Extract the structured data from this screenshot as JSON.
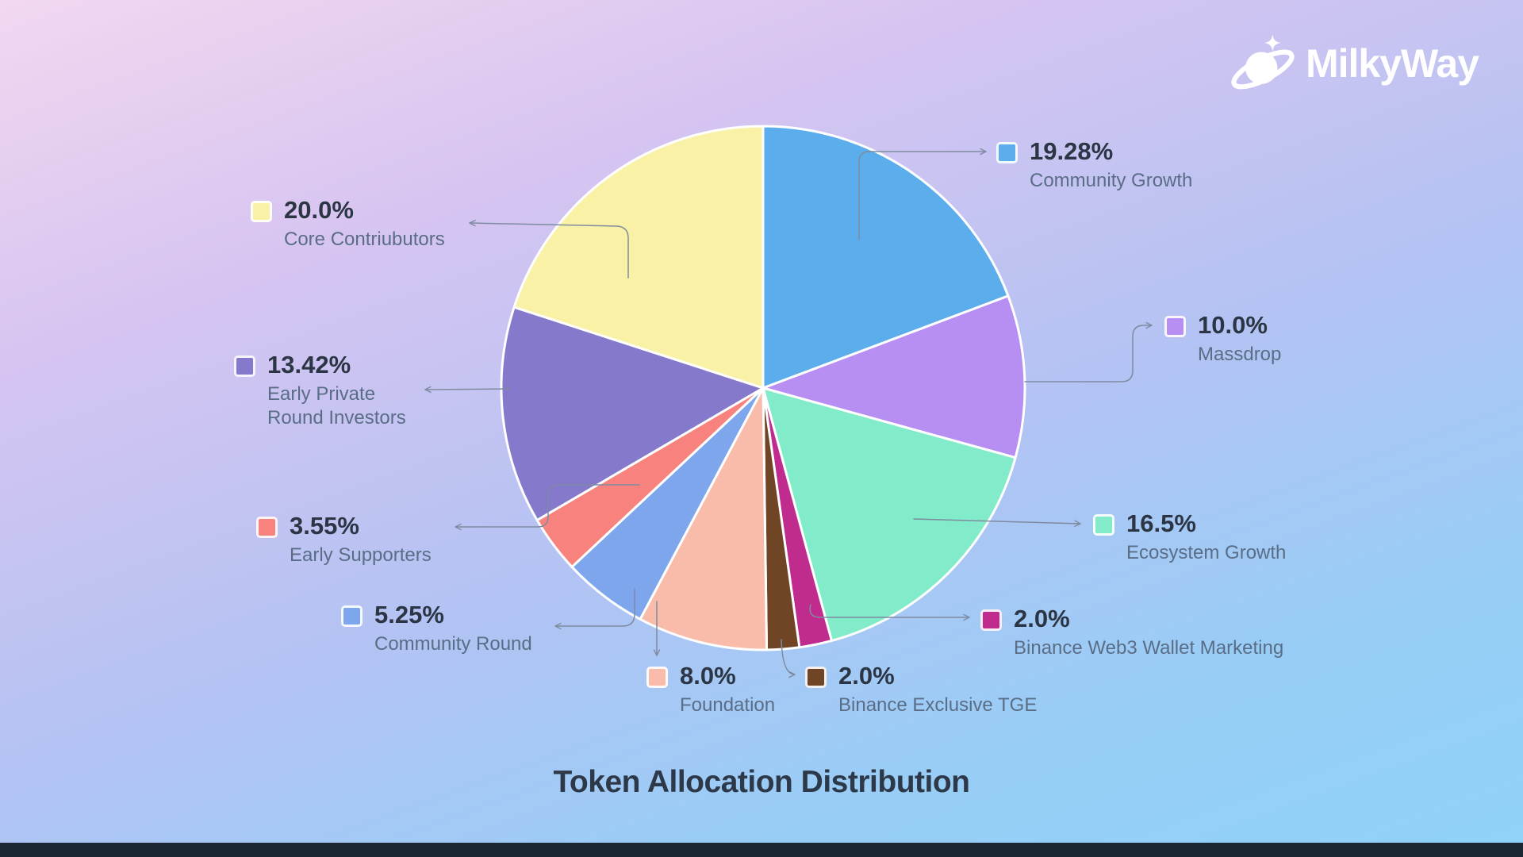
{
  "logo": {
    "text": "MilkyWay",
    "icon": "planet-ring-sparkle-icon"
  },
  "title": "Token Allocation Distribution",
  "chart_data": {
    "type": "pie",
    "title": "Token Allocation Distribution",
    "unit": "%",
    "start_angle_deg": 0,
    "direction": "clockwise",
    "legend_position": "callouts-around-pie",
    "slices": [
      {
        "label": "Community Growth",
        "value": 19.28,
        "display": "19.28%",
        "color": "#5badeb"
      },
      {
        "label": "Massdrop",
        "value": 10.0,
        "display": "10.0%",
        "color": "#b78ff2"
      },
      {
        "label": "Ecosystem Growth",
        "value": 16.5,
        "display": "16.5%",
        "color": "#82ebc9"
      },
      {
        "label": "Binance Web3 Wallet Marketing",
        "value": 2.0,
        "display": "2.0%",
        "color": "#c02b8e"
      },
      {
        "label": "Binance Exclusive TGE",
        "value": 2.0,
        "display": "2.0%",
        "color": "#6f4526"
      },
      {
        "label": "Foundation",
        "value": 8.0,
        "display": "8.0%",
        "color": "#f9bcab"
      },
      {
        "label": "Community Round",
        "value": 5.25,
        "display": "5.25%",
        "color": "#7ea6ec"
      },
      {
        "label": "Early Supporters",
        "value": 3.55,
        "display": "3.55%",
        "color": "#f8837e"
      },
      {
        "label": "Early Private Round Investors",
        "value": 13.42,
        "display": "13.42%",
        "color": "#8579cc"
      },
      {
        "label": "Core Contriubutors",
        "value": 20.0,
        "display": "20.0%",
        "color": "#f9f1a5"
      }
    ]
  }
}
